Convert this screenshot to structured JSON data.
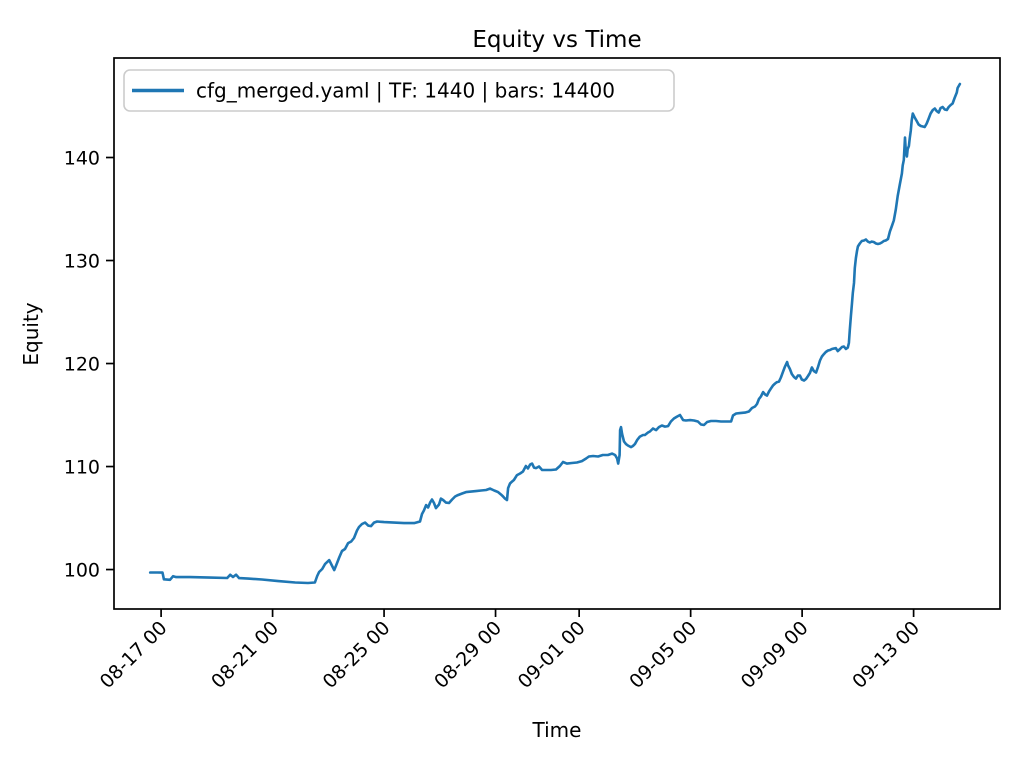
{
  "figure": {
    "background": "#ffffff",
    "spine_color": "#000000"
  },
  "chart_data": {
    "type": "line",
    "title": "Equity vs Time",
    "xlabel": "Time",
    "ylabel": "Equity",
    "grid": false,
    "legend_position": "upper left",
    "legend_edge_color": "#cccccc",
    "x_axis_origin": "08-16 00:00",
    "x_ticks": [
      {
        "label": "08-17 00",
        "day": 1
      },
      {
        "label": "08-21 00",
        "day": 5
      },
      {
        "label": "08-25 00",
        "day": 9
      },
      {
        "label": "08-29 00",
        "day": 13
      },
      {
        "label": "09-01 00",
        "day": 16
      },
      {
        "label": "09-05 00",
        "day": 20
      },
      {
        "label": "09-09 00",
        "day": 24
      },
      {
        "label": "09-13 00",
        "day": 28
      }
    ],
    "y_ticks": [
      100,
      110,
      120,
      130,
      140
    ],
    "xlim_days": [
      -0.69,
      31.1
    ],
    "ylim": [
      96.17,
      149.66
    ],
    "series": [
      {
        "name": "cfg_merged.yaml | TF: 1440 | bars: 14400",
        "color": "#1f77b4",
        "line_width": 2.6,
        "points": [
          [
            0.61,
            99.71
          ],
          [
            0.86,
            99.71
          ],
          [
            1.05,
            99.7
          ],
          [
            1.1,
            99.05
          ],
          [
            1.32,
            99.0
          ],
          [
            1.43,
            99.35
          ],
          [
            1.54,
            99.27
          ],
          [
            2.04,
            99.27
          ],
          [
            2.76,
            99.22
          ],
          [
            3.37,
            99.18
          ],
          [
            3.48,
            99.5
          ],
          [
            3.58,
            99.28
          ],
          [
            3.69,
            99.5
          ],
          [
            3.8,
            99.17
          ],
          [
            4.12,
            99.12
          ],
          [
            4.62,
            99.03
          ],
          [
            5.2,
            98.88
          ],
          [
            5.81,
            98.74
          ],
          [
            6.27,
            98.69
          ],
          [
            6.52,
            98.74
          ],
          [
            6.6,
            99.37
          ],
          [
            6.67,
            99.76
          ],
          [
            6.78,
            100.05
          ],
          [
            6.88,
            100.53
          ],
          [
            7.03,
            100.92
          ],
          [
            7.13,
            100.39
          ],
          [
            7.21,
            99.95
          ],
          [
            7.28,
            100.39
          ],
          [
            7.39,
            101.17
          ],
          [
            7.49,
            101.8
          ],
          [
            7.6,
            101.99
          ],
          [
            7.71,
            102.57
          ],
          [
            7.82,
            102.72
          ],
          [
            7.92,
            103.06
          ],
          [
            8.03,
            103.79
          ],
          [
            8.1,
            104.13
          ],
          [
            8.21,
            104.42
          ],
          [
            8.32,
            104.56
          ],
          [
            8.43,
            104.27
          ],
          [
            8.53,
            104.22
          ],
          [
            8.64,
            104.56
          ],
          [
            8.75,
            104.66
          ],
          [
            9.0,
            104.61
          ],
          [
            9.36,
            104.56
          ],
          [
            9.72,
            104.51
          ],
          [
            10.08,
            104.51
          ],
          [
            10.29,
            104.66
          ],
          [
            10.36,
            105.39
          ],
          [
            10.43,
            105.73
          ],
          [
            10.51,
            106.26
          ],
          [
            10.58,
            106.02
          ],
          [
            10.65,
            106.5
          ],
          [
            10.72,
            106.8
          ],
          [
            10.79,
            106.46
          ],
          [
            10.86,
            105.97
          ],
          [
            10.97,
            106.31
          ],
          [
            11.04,
            106.89
          ],
          [
            11.12,
            106.75
          ],
          [
            11.22,
            106.5
          ],
          [
            11.33,
            106.46
          ],
          [
            11.44,
            106.8
          ],
          [
            11.55,
            107.09
          ],
          [
            11.65,
            107.23
          ],
          [
            11.8,
            107.38
          ],
          [
            11.94,
            107.52
          ],
          [
            12.12,
            107.57
          ],
          [
            12.3,
            107.62
          ],
          [
            12.48,
            107.67
          ],
          [
            12.66,
            107.72
          ],
          [
            12.8,
            107.86
          ],
          [
            12.95,
            107.67
          ],
          [
            13.09,
            107.52
          ],
          [
            13.2,
            107.28
          ],
          [
            13.27,
            107.09
          ],
          [
            13.34,
            106.89
          ],
          [
            13.41,
            106.75
          ],
          [
            13.45,
            107.91
          ],
          [
            13.52,
            108.35
          ],
          [
            13.59,
            108.54
          ],
          [
            13.66,
            108.69
          ],
          [
            13.77,
            109.17
          ],
          [
            13.88,
            109.32
          ],
          [
            13.98,
            109.51
          ],
          [
            14.09,
            110.05
          ],
          [
            14.16,
            109.81
          ],
          [
            14.24,
            110.19
          ],
          [
            14.31,
            110.29
          ],
          [
            14.38,
            109.9
          ],
          [
            14.45,
            109.85
          ],
          [
            14.56,
            110.0
          ],
          [
            14.67,
            109.66
          ],
          [
            14.81,
            109.66
          ],
          [
            14.99,
            109.66
          ],
          [
            15.17,
            109.71
          ],
          [
            15.31,
            110.05
          ],
          [
            15.42,
            110.44
          ],
          [
            15.56,
            110.29
          ],
          [
            15.74,
            110.34
          ],
          [
            15.92,
            110.39
          ],
          [
            16.1,
            110.53
          ],
          [
            16.25,
            110.78
          ],
          [
            16.35,
            110.97
          ],
          [
            16.5,
            111.02
          ],
          [
            16.68,
            110.97
          ],
          [
            16.85,
            111.12
          ],
          [
            17.03,
            111.12
          ],
          [
            17.18,
            111.26
          ],
          [
            17.29,
            111.12
          ],
          [
            17.36,
            110.78
          ],
          [
            17.4,
            110.29
          ],
          [
            17.45,
            111.12
          ],
          [
            17.47,
            113.54
          ],
          [
            17.5,
            113.83
          ],
          [
            17.54,
            113.16
          ],
          [
            17.61,
            112.43
          ],
          [
            17.68,
            112.18
          ],
          [
            17.75,
            112.04
          ],
          [
            17.86,
            111.89
          ],
          [
            17.93,
            111.99
          ],
          [
            18.0,
            112.18
          ],
          [
            18.08,
            112.57
          ],
          [
            18.18,
            112.91
          ],
          [
            18.29,
            113.06
          ],
          [
            18.36,
            113.06
          ],
          [
            18.47,
            113.3
          ],
          [
            18.54,
            113.4
          ],
          [
            18.65,
            113.69
          ],
          [
            18.76,
            113.54
          ],
          [
            18.86,
            113.83
          ],
          [
            18.97,
            113.98
          ],
          [
            19.08,
            113.88
          ],
          [
            19.19,
            113.93
          ],
          [
            19.29,
            114.37
          ],
          [
            19.4,
            114.66
          ],
          [
            19.51,
            114.85
          ],
          [
            19.62,
            115.0
          ],
          [
            19.73,
            114.51
          ],
          [
            19.83,
            114.47
          ],
          [
            19.98,
            114.51
          ],
          [
            20.12,
            114.47
          ],
          [
            20.26,
            114.37
          ],
          [
            20.37,
            114.08
          ],
          [
            20.48,
            114.03
          ],
          [
            20.59,
            114.32
          ],
          [
            20.73,
            114.42
          ],
          [
            20.91,
            114.42
          ],
          [
            21.09,
            114.37
          ],
          [
            21.27,
            114.37
          ],
          [
            21.45,
            114.37
          ],
          [
            21.52,
            114.95
          ],
          [
            21.63,
            115.15
          ],
          [
            21.77,
            115.19
          ],
          [
            21.95,
            115.24
          ],
          [
            22.09,
            115.34
          ],
          [
            22.2,
            115.68
          ],
          [
            22.31,
            115.83
          ],
          [
            22.38,
            116.07
          ],
          [
            22.45,
            116.55
          ],
          [
            22.52,
            116.8
          ],
          [
            22.6,
            117.23
          ],
          [
            22.67,
            116.99
          ],
          [
            22.74,
            116.89
          ],
          [
            22.81,
            117.28
          ],
          [
            22.88,
            117.57
          ],
          [
            22.95,
            117.86
          ],
          [
            23.03,
            118.06
          ],
          [
            23.1,
            118.2
          ],
          [
            23.17,
            118.25
          ],
          [
            23.24,
            118.64
          ],
          [
            23.31,
            119.17
          ],
          [
            23.38,
            119.66
          ],
          [
            23.46,
            120.15
          ],
          [
            23.49,
            119.85
          ],
          [
            23.56,
            119.47
          ],
          [
            23.63,
            118.98
          ],
          [
            23.71,
            118.69
          ],
          [
            23.78,
            118.54
          ],
          [
            23.85,
            118.83
          ],
          [
            23.92,
            118.83
          ],
          [
            23.99,
            118.45
          ],
          [
            24.07,
            118.35
          ],
          [
            24.14,
            118.5
          ],
          [
            24.21,
            118.79
          ],
          [
            24.28,
            119.08
          ],
          [
            24.35,
            119.61
          ],
          [
            24.42,
            119.27
          ],
          [
            24.5,
            119.13
          ],
          [
            24.57,
            119.66
          ],
          [
            24.64,
            120.29
          ],
          [
            24.71,
            120.68
          ],
          [
            24.78,
            120.92
          ],
          [
            24.85,
            121.12
          ],
          [
            24.93,
            121.26
          ],
          [
            25.0,
            121.31
          ],
          [
            25.07,
            121.41
          ],
          [
            25.14,
            121.46
          ],
          [
            25.21,
            121.5
          ],
          [
            25.28,
            121.21
          ],
          [
            25.36,
            121.41
          ],
          [
            25.43,
            121.6
          ],
          [
            25.5,
            121.65
          ],
          [
            25.57,
            121.41
          ],
          [
            25.64,
            121.55
          ],
          [
            25.68,
            121.99
          ],
          [
            25.71,
            123.25
          ],
          [
            25.75,
            124.61
          ],
          [
            25.79,
            125.87
          ],
          [
            25.82,
            126.84
          ],
          [
            25.86,
            127.82
          ],
          [
            25.89,
            129.27
          ],
          [
            25.93,
            130.24
          ],
          [
            25.97,
            130.92
          ],
          [
            26.0,
            131.36
          ],
          [
            26.07,
            131.65
          ],
          [
            26.14,
            131.89
          ],
          [
            26.22,
            131.94
          ],
          [
            26.29,
            132.04
          ],
          [
            26.36,
            131.84
          ],
          [
            26.43,
            131.75
          ],
          [
            26.5,
            131.84
          ],
          [
            26.57,
            131.8
          ],
          [
            26.65,
            131.65
          ],
          [
            26.72,
            131.6
          ],
          [
            26.79,
            131.65
          ],
          [
            26.86,
            131.75
          ],
          [
            26.93,
            131.89
          ],
          [
            27.0,
            131.94
          ],
          [
            27.08,
            132.09
          ],
          [
            27.15,
            132.82
          ],
          [
            27.22,
            133.35
          ],
          [
            27.29,
            133.88
          ],
          [
            27.36,
            134.95
          ],
          [
            27.43,
            136.26
          ],
          [
            27.51,
            137.43
          ],
          [
            27.58,
            138.45
          ],
          [
            27.61,
            139.22
          ],
          [
            27.65,
            139.76
          ],
          [
            27.69,
            141.94
          ],
          [
            27.72,
            140.63
          ],
          [
            27.76,
            140.1
          ],
          [
            27.79,
            140.83
          ],
          [
            27.83,
            141.12
          ],
          [
            27.86,
            141.84
          ],
          [
            27.9,
            142.62
          ],
          [
            27.93,
            143.59
          ],
          [
            27.97,
            144.27
          ],
          [
            28.04,
            143.88
          ],
          [
            28.11,
            143.54
          ],
          [
            28.18,
            143.2
          ],
          [
            28.26,
            143.06
          ],
          [
            28.33,
            143.01
          ],
          [
            28.4,
            142.96
          ],
          [
            28.47,
            143.3
          ],
          [
            28.54,
            143.79
          ],
          [
            28.61,
            144.27
          ],
          [
            28.69,
            144.61
          ],
          [
            28.76,
            144.76
          ],
          [
            28.83,
            144.51
          ],
          [
            28.9,
            144.37
          ],
          [
            28.97,
            144.81
          ],
          [
            29.04,
            144.9
          ],
          [
            29.12,
            144.66
          ],
          [
            29.19,
            144.61
          ],
          [
            29.26,
            144.9
          ],
          [
            29.33,
            145.1
          ],
          [
            29.4,
            145.24
          ],
          [
            29.47,
            145.78
          ],
          [
            29.55,
            146.31
          ],
          [
            29.58,
            146.75
          ],
          [
            29.66,
            147.14
          ]
        ]
      }
    ]
  }
}
